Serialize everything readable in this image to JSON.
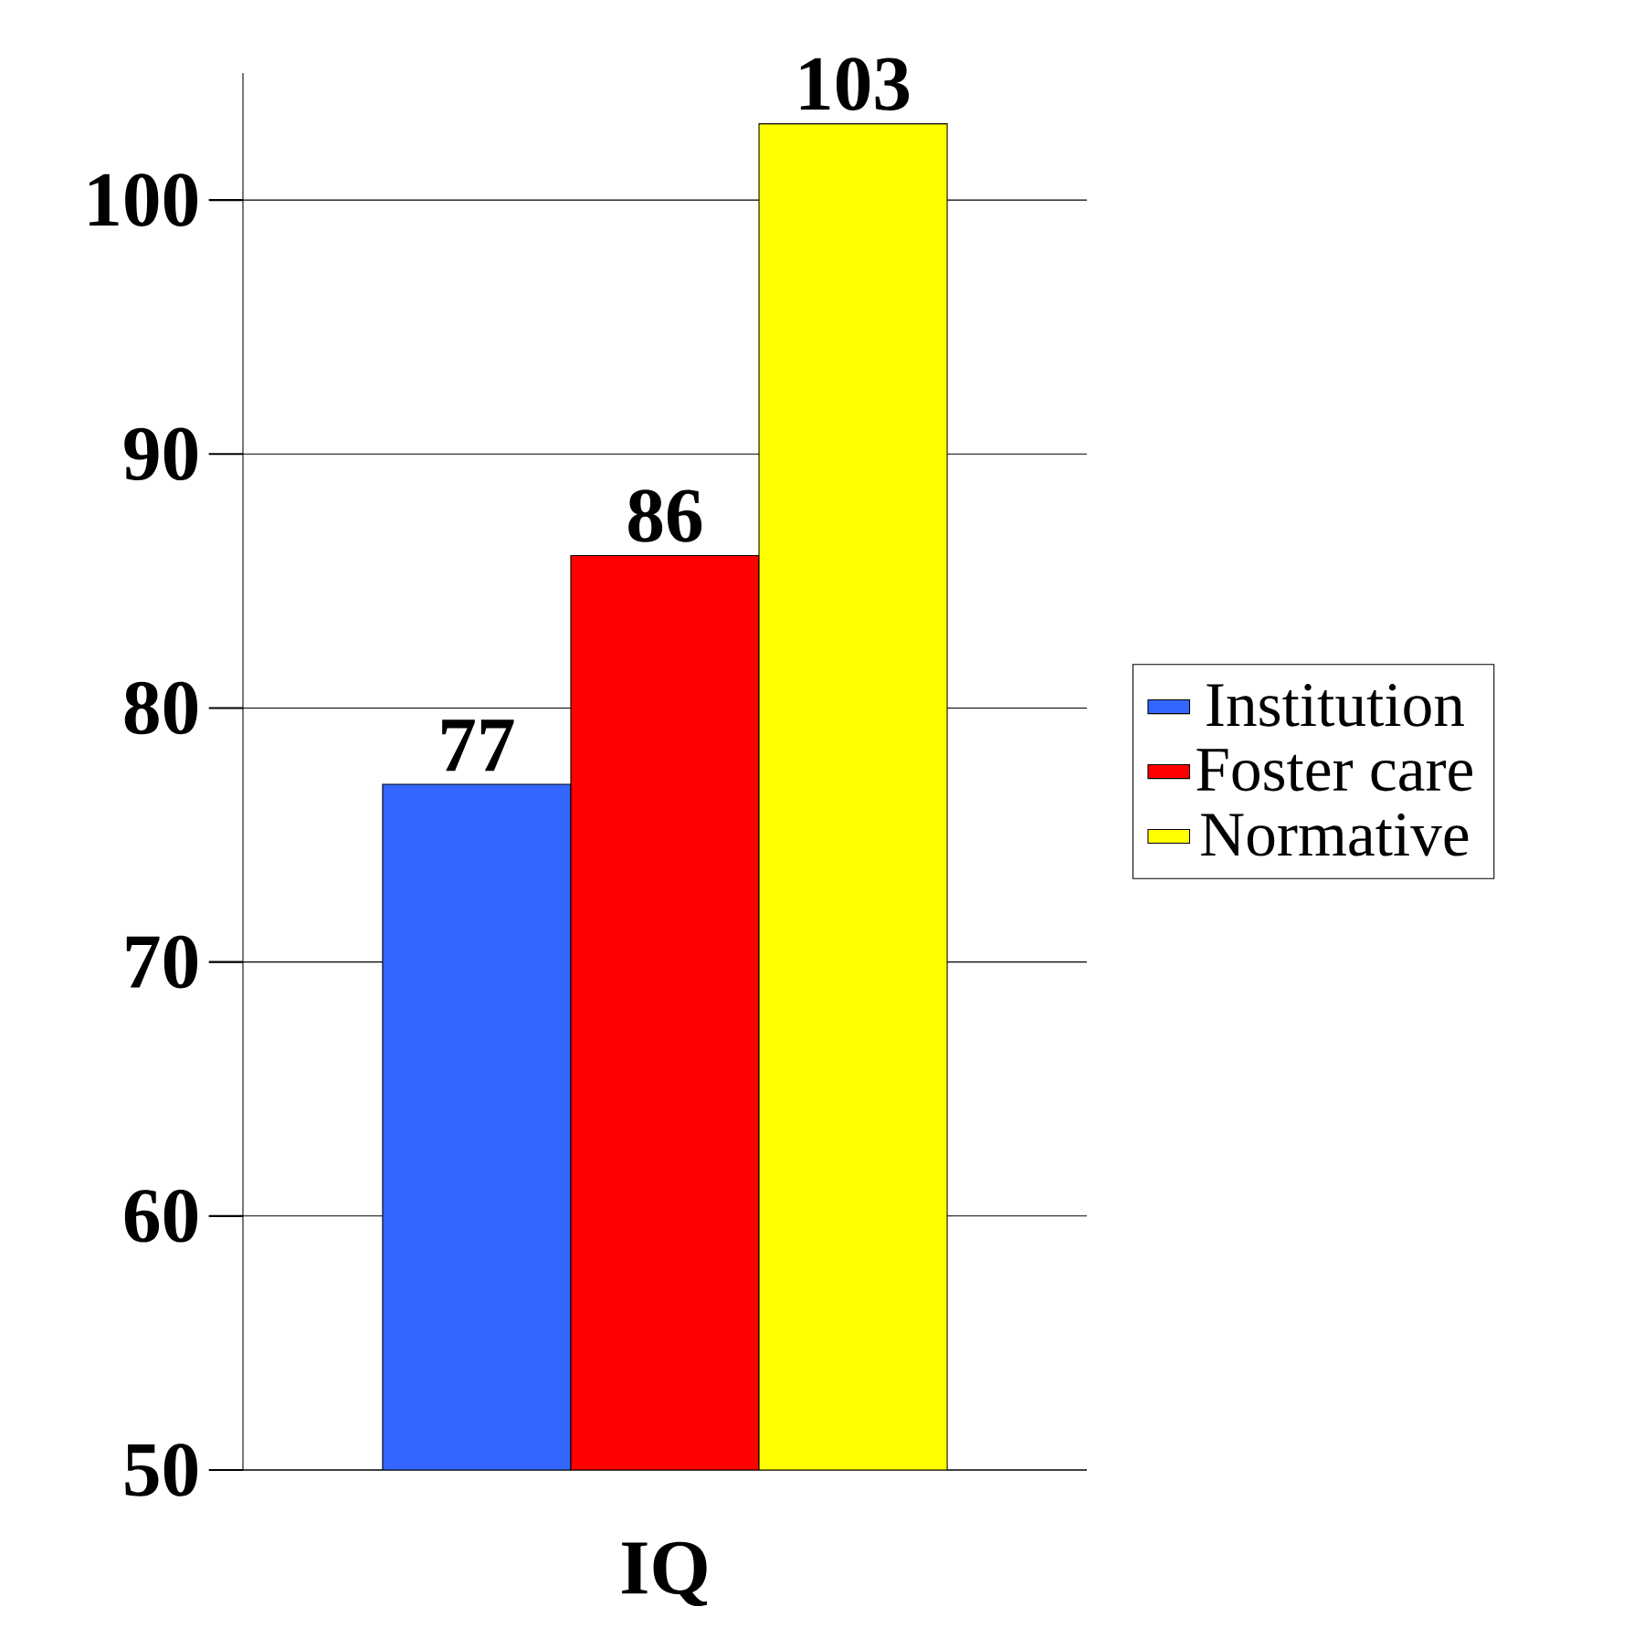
{
  "chart_data": {
    "type": "bar",
    "categories": [
      "IQ"
    ],
    "series": [
      {
        "name": "Institution",
        "color": "#3366ff",
        "values": [
          77
        ]
      },
      {
        "name": "Foster care",
        "color": "#ff0000",
        "values": [
          86
        ]
      },
      {
        "name": "Normative",
        "color": "#ffff00",
        "values": [
          103
        ]
      }
    ],
    "ylim": [
      50,
      105
    ],
    "yticks": [
      50,
      60,
      70,
      80,
      90,
      100
    ],
    "grid": "y",
    "legend": "right",
    "data_labels": true
  }
}
